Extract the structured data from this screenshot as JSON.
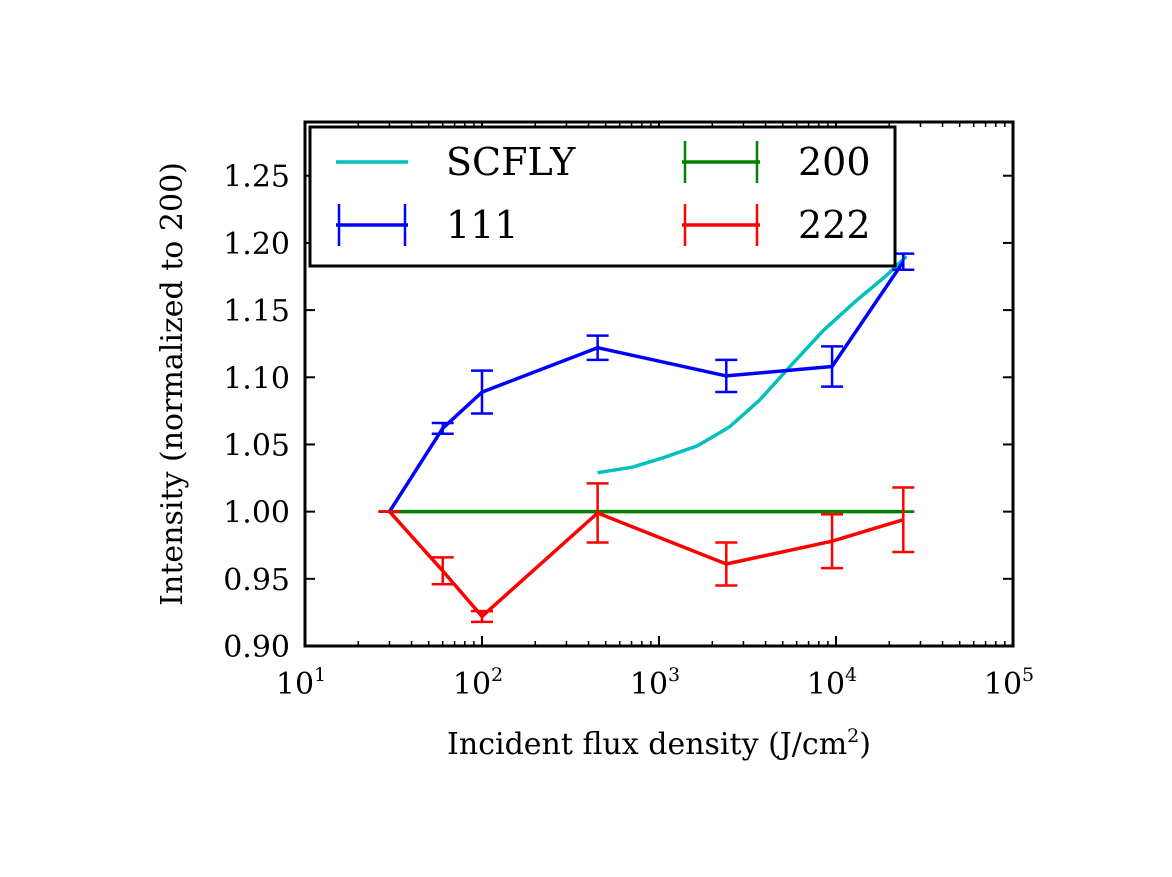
{
  "chart_data": {
    "type": "line",
    "xlabel": "Incident flux density (J/cm",
    "xlabel_sup": "2",
    "xlabel_end": ")",
    "ylabel": "Intensity (normalized to 200)",
    "x_scale": "log",
    "xlim": [
      10,
      100000
    ],
    "ylim": [
      0.9,
      1.29
    ],
    "grid": false,
    "legend_placement": "top-left",
    "legend_columns": 2,
    "x_ticks": [
      {
        "base": "10",
        "exp": "1"
      },
      {
        "base": "10",
        "exp": "2"
      },
      {
        "base": "10",
        "exp": "3"
      },
      {
        "base": "10",
        "exp": "4"
      },
      {
        "base": "10",
        "exp": "5"
      }
    ],
    "x_tick_values": [
      10,
      100,
      1000,
      10000,
      100000
    ],
    "y_ticks": [
      "0.90",
      "0.95",
      "1.00",
      "1.05",
      "1.10",
      "1.15",
      "1.20",
      "1.25"
    ],
    "y_tick_values": [
      0.9,
      0.95,
      1.0,
      1.05,
      1.1,
      1.15,
      1.2,
      1.25
    ],
    "series": [
      {
        "name": "SCFLY",
        "color": "#00bfbf",
        "errorbars": false,
        "x": [
          450,
          700,
          1050,
          1650,
          2500,
          3700,
          5500,
          8500,
          13000,
          19000,
          25000
        ],
        "y": [
          1.029,
          1.033,
          1.04,
          1.049,
          1.063,
          1.083,
          1.108,
          1.135,
          1.157,
          1.175,
          1.19
        ]
      },
      {
        "name": "111",
        "color": "#0000ff",
        "errorbars": true,
        "x": [
          30,
          60,
          100,
          450,
          2400,
          9500,
          24000
        ],
        "y": [
          1.0,
          1.062,
          1.089,
          1.122,
          1.101,
          1.108,
          1.186
        ],
        "err": [
          0.0,
          0.004,
          0.016,
          0.009,
          0.012,
          0.015,
          0.006
        ]
      },
      {
        "name": "200",
        "color": "#008000",
        "errorbars": true,
        "x": [
          30,
          60,
          100,
          450,
          2400,
          9500,
          24000
        ],
        "y": [
          1.0,
          1.0,
          1.0,
          1.0,
          1.0,
          1.0,
          1.0
        ],
        "err": [
          0,
          0,
          0,
          0,
          0,
          0,
          0
        ]
      },
      {
        "name": "222",
        "color": "#ff0000",
        "errorbars": true,
        "x": [
          30,
          60,
          100,
          450,
          2400,
          9500,
          24000
        ],
        "y": [
          1.0,
          0.956,
          0.922,
          0.999,
          0.961,
          0.978,
          0.994
        ],
        "err": [
          0.0,
          0.01,
          0.004,
          0.022,
          0.016,
          0.02,
          0.024
        ]
      }
    ]
  }
}
